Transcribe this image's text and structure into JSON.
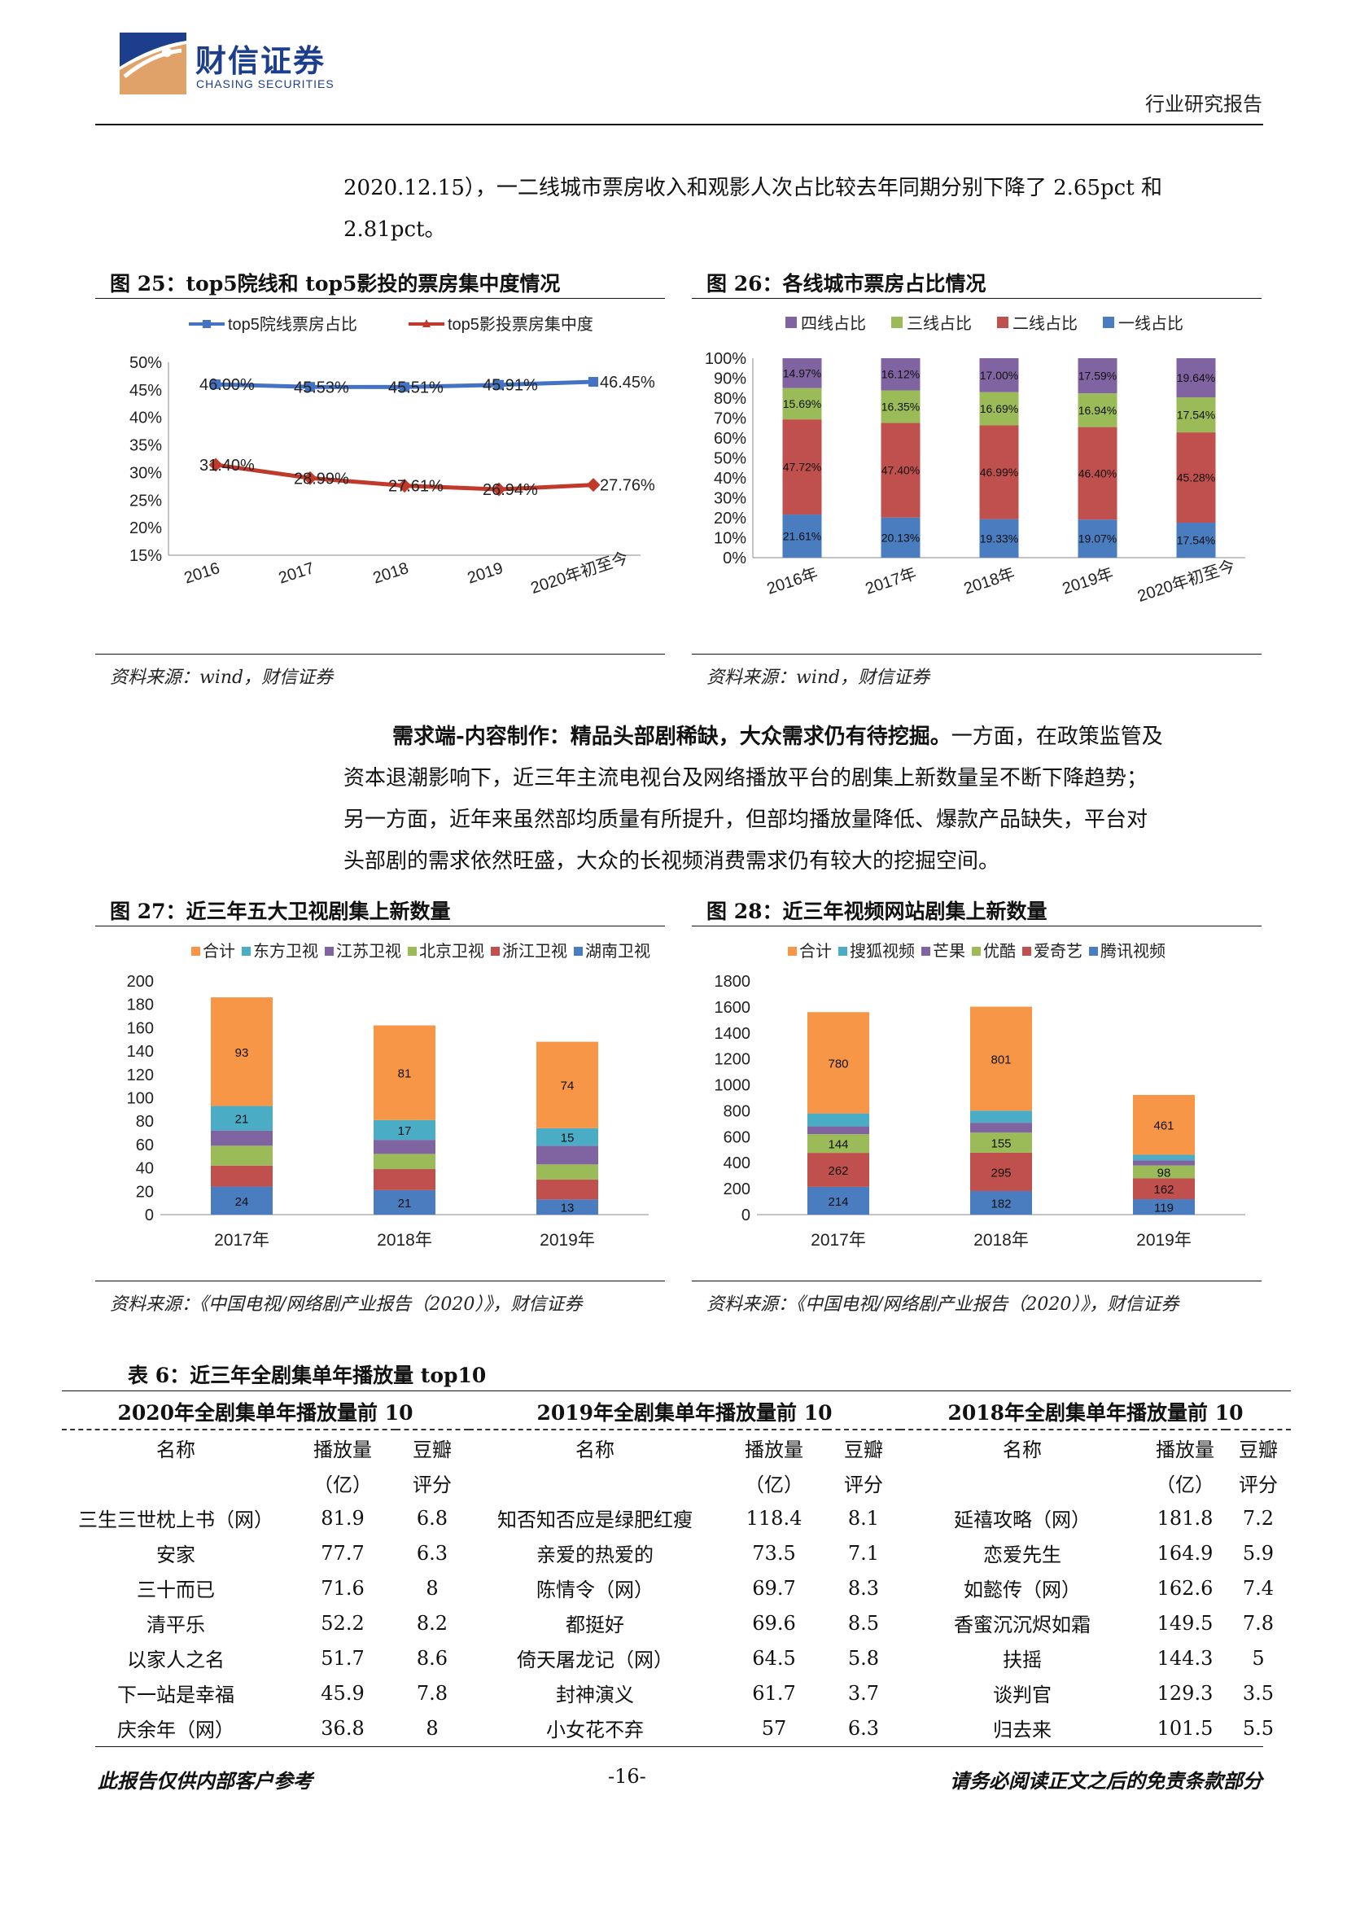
{
  "header": {
    "company_cn": "财信证券",
    "company_en": "CHASING SECURITIES",
    "doc_type": "行业研究报告"
  },
  "intro": {
    "line1": "2020.12.15），一二线城市票房收入和观影人次占比较去年同期分别下降了 2.65pct 和",
    "line2": "2.81pct。"
  },
  "fig25": {
    "title": "图 25：top5院线和 top5影投的票房集中度情况",
    "source": "资料来源：wind，财信证券",
    "chart_data": {
      "type": "line",
      "categories": [
        "2016",
        "2017",
        "2018",
        "2019",
        "2020年初至今"
      ],
      "series": [
        {
          "name": "top5院线票房占比",
          "values": [
            46.0,
            45.53,
            45.51,
            45.91,
            46.45
          ],
          "labels": [
            "46.00%",
            "45.53%",
            "45.51%",
            "45.91%",
            "46.45%"
          ],
          "color": "#4472c4"
        },
        {
          "name": "top5影投票房集中度",
          "values": [
            31.4,
            28.99,
            27.61,
            26.94,
            27.76
          ],
          "labels": [
            "31.40%",
            "28.99%",
            "27.61%",
            "26.94%",
            "27.76%"
          ],
          "color": "#c0392b"
        }
      ],
      "yticks": [
        "50%",
        "45%",
        "40%",
        "35%",
        "30%",
        "25%",
        "20%",
        "15%"
      ],
      "ylim": [
        15,
        50
      ],
      "legend": "top"
    }
  },
  "fig26": {
    "title": "图 26：各线城市票房占比情况",
    "source": "资料来源：wind，财信证券",
    "chart_data": {
      "type": "bar",
      "stacked": true,
      "categories": [
        "2016年",
        "2017年",
        "2018年",
        "2019年",
        "2020年初至今"
      ],
      "series": [
        {
          "name": "一线占比",
          "values": [
            21.61,
            20.13,
            19.33,
            19.07,
            17.54
          ],
          "labels": [
            "21.61%",
            "20.13%",
            "19.33%",
            "19.07%",
            "17.54%"
          ],
          "color": "#4a7cc0"
        },
        {
          "name": "二线占比",
          "values": [
            47.72,
            47.4,
            46.99,
            46.4,
            45.28
          ],
          "labels": [
            "47.72%",
            "47.40%",
            "46.99%",
            "46.40%",
            "45.28%"
          ],
          "color": "#c0504d"
        },
        {
          "name": "三线占比",
          "values": [
            15.69,
            16.35,
            16.69,
            16.94,
            17.54
          ],
          "labels": [
            "15.69%",
            "16.35%",
            "16.69%",
            "16.94%",
            "17.54%"
          ],
          "color": "#9bbb59"
        },
        {
          "name": "四线占比",
          "values": [
            14.97,
            16.12,
            17.0,
            17.59,
            19.64
          ],
          "labels": [
            "14.97%",
            "16.12%",
            "17.00%",
            "17.59%",
            "19.64%"
          ],
          "color": "#8064a2"
        }
      ],
      "legend_order": [
        "四线占比",
        "三线占比",
        "二线占比",
        "一线占比"
      ],
      "yticks": [
        "100%",
        "90%",
        "80%",
        "70%",
        "60%",
        "50%",
        "40%",
        "30%",
        "20%",
        "10%",
        "0%"
      ],
      "ylim": [
        0,
        100
      ],
      "legend": "top"
    }
  },
  "demand": {
    "bold": "需求端-内容制作：精品头部剧稀缺，大众需求仍有待挖掘。",
    "rest": "一方面，在政策监管及",
    "line2": "资本退潮影响下，近三年主流电视台及网络播放平台的剧集上新数量呈不断下降趋势；",
    "line3": "另一方面，近年来虽然部均质量有所提升，但部均播放量降低、爆款产品缺失，平台对",
    "line4": "头部剧的需求依然旺盛，大众的长视频消费需求仍有较大的挖掘空间。"
  },
  "fig27": {
    "title": "图 27：近三年五大卫视剧集上新数量",
    "source": "资料来源：《中国电视/网络剧产业报告（2020）》，财信证券",
    "chart_data": {
      "type": "bar",
      "stacked": true,
      "categories": [
        "2017年",
        "2018年",
        "2019年"
      ],
      "legend_order": [
        "合计",
        "东方卫视",
        "江苏卫视",
        "北京卫视",
        "浙江卫视",
        "湖南卫视"
      ],
      "stack_bottom_up": [
        {
          "name": "湖南卫视",
          "values": [
            24,
            21,
            13
          ],
          "labels": [
            "24",
            "21",
            "13"
          ],
          "color": "#4a7cc0"
        },
        {
          "name": "浙江卫视",
          "values": [
            18,
            18,
            17
          ],
          "labels": [
            "",
            "",
            ""
          ],
          "color": "#c0504d"
        },
        {
          "name": "北京卫视",
          "values": [
            17,
            13,
            13
          ],
          "labels": [
            "",
            "",
            ""
          ],
          "color": "#9bbb59"
        },
        {
          "name": "江苏卫视",
          "values": [
            13,
            12,
            16
          ],
          "labels": [
            "",
            "",
            ""
          ],
          "color": "#8064a2"
        },
        {
          "name": "东方卫视",
          "values": [
            21,
            17,
            15
          ],
          "labels": [
            "21",
            "17",
            "15"
          ],
          "color": "#4bacc6"
        },
        {
          "name": "合计",
          "values": [
            93,
            81,
            74
          ],
          "labels": [
            "93",
            "81",
            "74"
          ],
          "color": "#f79646"
        }
      ],
      "yticks": [
        "200",
        "180",
        "160",
        "140",
        "120",
        "100",
        "80",
        "60",
        "40",
        "20",
        "0"
      ],
      "ylim": [
        0,
        200
      ],
      "legend": "top"
    }
  },
  "fig28": {
    "title": "图 28：近三年视频网站剧集上新数量",
    "source": "资料来源：《中国电视/网络剧产业报告（2020）》，财信证券",
    "chart_data": {
      "type": "bar",
      "stacked": true,
      "categories": [
        "2017年",
        "2018年",
        "2019年"
      ],
      "legend_order": [
        "合计",
        "搜狐视频",
        "芒果",
        "优酷",
        "爱奇艺",
        "腾讯视频"
      ],
      "stack_bottom_up": [
        {
          "name": "腾讯视频",
          "values": [
            214,
            182,
            119
          ],
          "labels": [
            "214",
            "182",
            "119"
          ],
          "color": "#4a7cc0"
        },
        {
          "name": "爱奇艺",
          "values": [
            262,
            295,
            162
          ],
          "labels": [
            "262",
            "295",
            "162"
          ],
          "color": "#c0504d"
        },
        {
          "name": "优酷",
          "values": [
            144,
            155,
            98
          ],
          "labels": [
            "144",
            "155",
            "98"
          ],
          "color": "#9bbb59"
        },
        {
          "name": "芒果",
          "values": [
            60,
            76,
            40
          ],
          "labels": [
            "",
            "",
            ""
          ],
          "color": "#8064a2"
        },
        {
          "name": "搜狐视频",
          "values": [
            100,
            93,
            42
          ],
          "labels": [
            "",
            "",
            ""
          ],
          "color": "#4bacc6"
        },
        {
          "name": "合计",
          "values": [
            780,
            801,
            461
          ],
          "labels": [
            "780",
            "801",
            "461"
          ],
          "color": "#f79646"
        }
      ],
      "yticks": [
        "1800",
        "1600",
        "1400",
        "1200",
        "1000",
        "800",
        "600",
        "400",
        "200",
        "0"
      ],
      "ylim": [
        0,
        1800
      ],
      "legend": "top"
    }
  },
  "table6": {
    "title": "表 6：近三年全剧集单年播放量 top10",
    "groups": [
      "2020年全剧集单年播放量前 10",
      "2019年全剧集单年播放量前 10",
      "2018年全剧集单年播放量前 10"
    ],
    "col_name": "名称",
    "col_play": "播放量",
    "col_play_unit": "（亿）",
    "col_score": "豆瓣",
    "col_score_unit": "评分",
    "rows": [
      [
        "三生三世枕上书（网）",
        "81.9",
        "6.8",
        "知否知否应是绿肥红瘦",
        "118.4",
        "8.1",
        "延禧攻略（网）",
        "181.8",
        "7.2"
      ],
      [
        "安家",
        "77.7",
        "6.3",
        "亲爱的热爱的",
        "73.5",
        "7.1",
        "恋爱先生",
        "164.9",
        "5.9"
      ],
      [
        "三十而已",
        "71.6",
        "8",
        "陈情令（网）",
        "69.7",
        "8.3",
        "如懿传（网）",
        "162.6",
        "7.4"
      ],
      [
        "清平乐",
        "52.2",
        "8.2",
        "都挺好",
        "69.6",
        "8.5",
        "香蜜沉沉烬如霜",
        "149.5",
        "7.8"
      ],
      [
        "以家人之名",
        "51.7",
        "8.6",
        "倚天屠龙记（网）",
        "64.5",
        "5.8",
        "扶摇",
        "144.3",
        "5"
      ],
      [
        "下一站是幸福",
        "45.9",
        "7.8",
        "封神演义",
        "61.7",
        "3.7",
        "谈判官",
        "129.3",
        "3.5"
      ],
      [
        "庆余年（网）",
        "36.8",
        "8",
        "小女花不弃",
        "57",
        "6.3",
        "归去来",
        "101.5",
        "5.5"
      ]
    ]
  },
  "footer": {
    "left": "此报告仅供内部客户参考",
    "page": "-16-",
    "right": "请务必阅读正文之后的免责条款部分"
  }
}
